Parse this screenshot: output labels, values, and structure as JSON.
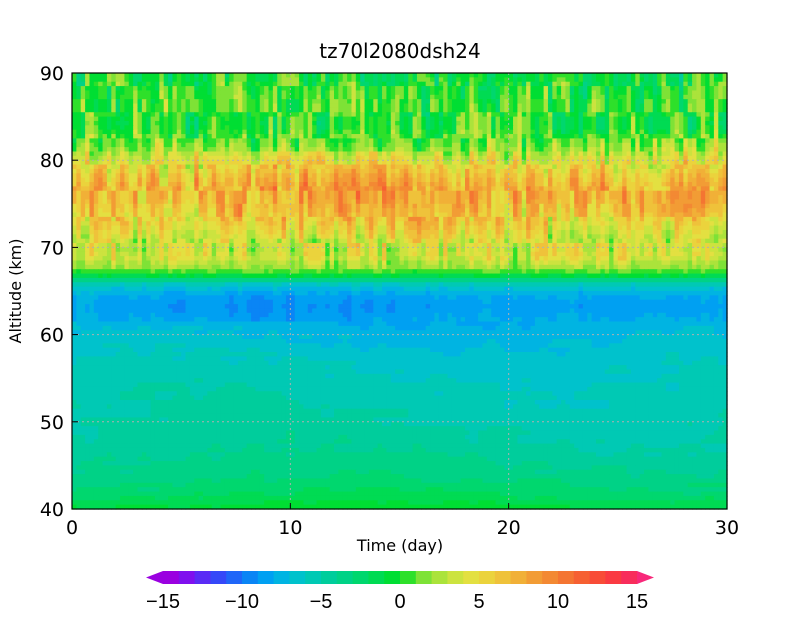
{
  "chart_data": {
    "type": "heatmap",
    "title": "tz70l2080dsh24",
    "xlabel": "Time (day)",
    "ylabel": "Altitude (km)",
    "xlim": [
      0,
      30
    ],
    "ylim": [
      40,
      90
    ],
    "x_ticks": [
      0,
      10,
      20,
      30
    ],
    "y_ticks": [
      40,
      50,
      60,
      70,
      80,
      90
    ],
    "grid": "dotted",
    "colorbar": {
      "orientation": "horizontal",
      "placement": "bottom",
      "min": -15,
      "max": 15,
      "step": 1,
      "tick_values": [
        -15,
        -10,
        -5,
        0,
        5,
        10,
        15
      ],
      "tick_labels": [
        "−15",
        "−10",
        "−5",
        "0",
        "5",
        "10",
        "15"
      ],
      "colors": [
        "#9a00e0",
        "#7f10ee",
        "#5a2bf5",
        "#3548f8",
        "#1f66f8",
        "#0a85f5",
        "#00a0f2",
        "#00b4e2",
        "#00c2cc",
        "#00c9b4",
        "#00cd9c",
        "#00d286",
        "#00d76e",
        "#00db53",
        "#00de33",
        "#2ee02a",
        "#7ee236",
        "#abe33b",
        "#cce33f",
        "#e3e041",
        "#ebd33c",
        "#efc23a",
        "#f1b037",
        "#f29c35",
        "#f38933",
        "#f47532",
        "#f66032",
        "#f84c37",
        "#fa3a42",
        "#f82d5b"
      ],
      "under_color": "#9a00e0",
      "over_color": "#f8287a"
    },
    "altitude_profile": {
      "altitude_km": [
        40,
        41,
        42,
        44,
        46,
        48,
        50,
        52,
        54,
        56,
        58,
        60,
        62,
        63,
        64,
        65,
        66,
        66.5,
        67,
        68,
        69,
        70,
        71,
        72,
        73,
        74,
        75,
        76,
        77,
        78,
        79,
        80,
        81,
        82,
        83,
        84,
        86,
        88,
        90
      ],
      "mean_value": [
        -0.5,
        -1.5,
        -2.5,
        -3.5,
        -4.2,
        -4.7,
        -5.0,
        -5.3,
        -5.6,
        -5.9,
        -6.4,
        -7.1,
        -8.0,
        -8.5,
        -8.3,
        -7.2,
        -5.0,
        -2.0,
        0.0,
        3.0,
        4.8,
        4.0,
        3.5,
        4.5,
        5.5,
        6.3,
        6.9,
        7.3,
        7.0,
        6.2,
        5.0,
        4.0,
        2.5,
        1.5,
        0.8,
        0.0,
        0.5,
        0.0,
        -0.5
      ]
    }
  }
}
